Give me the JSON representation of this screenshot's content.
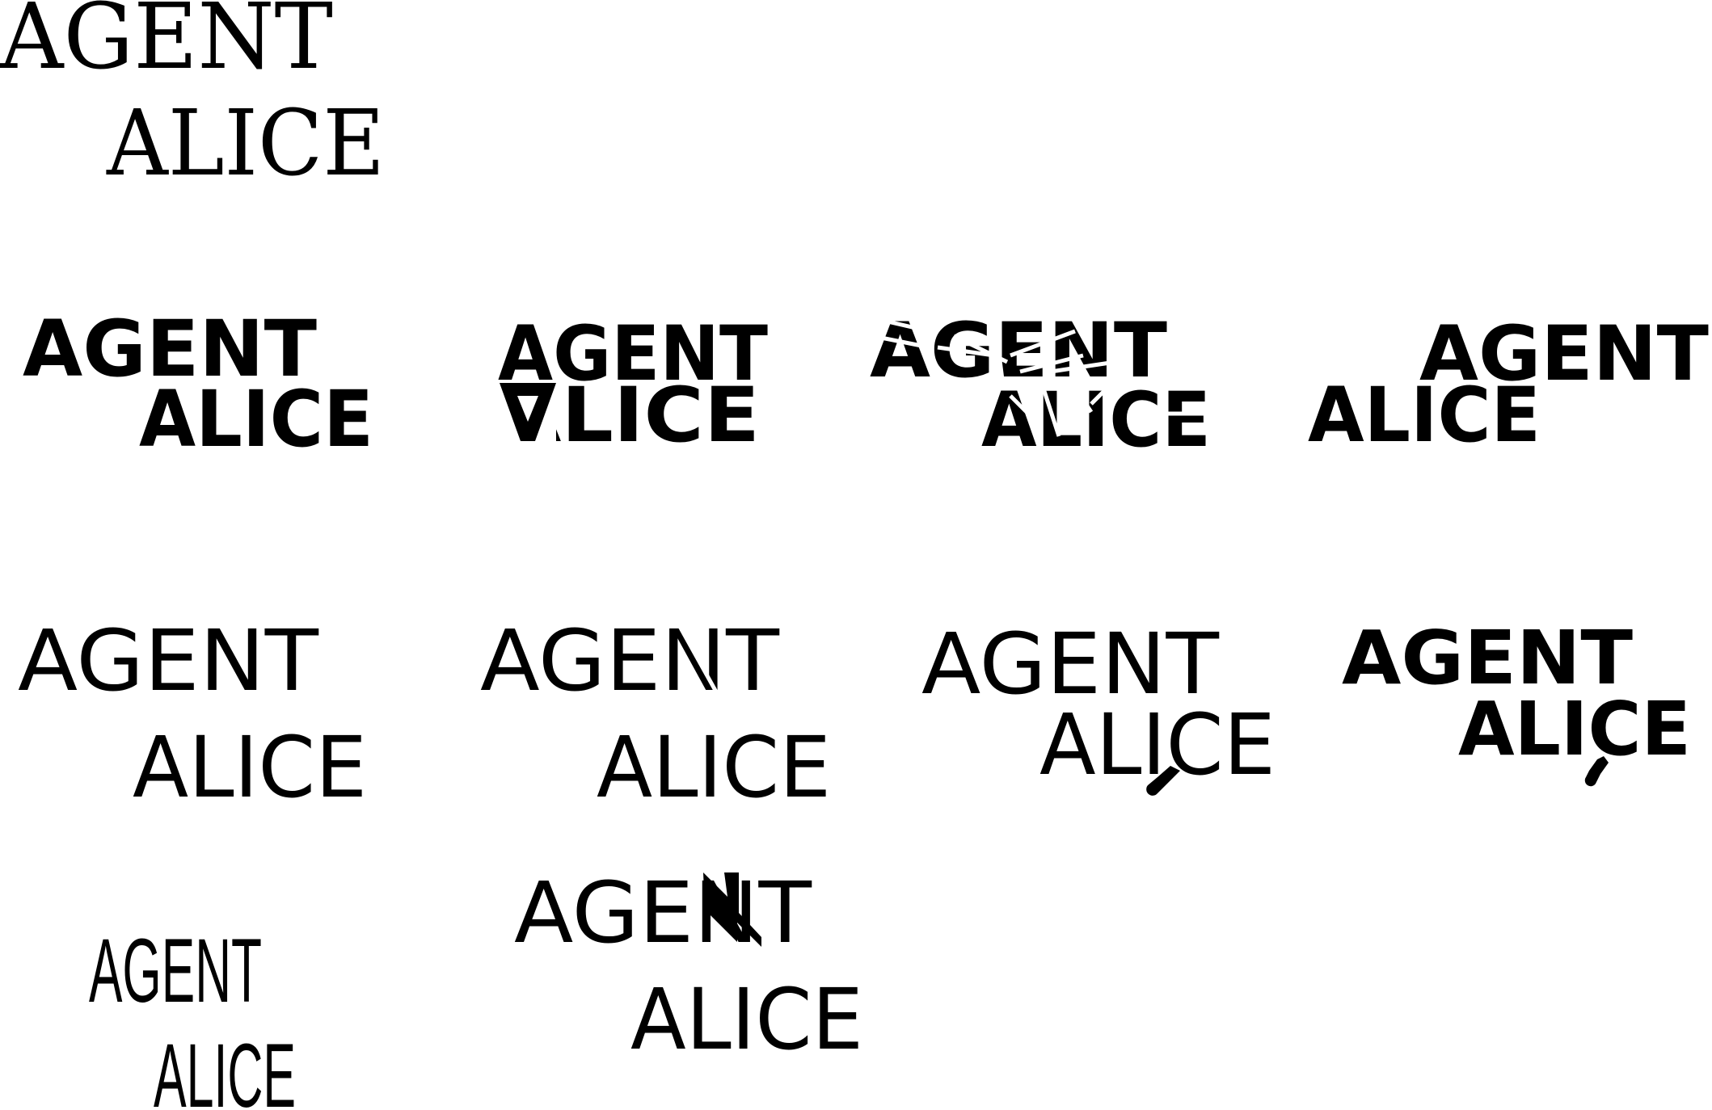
{
  "logos": [
    {
      "id": "v1",
      "top": "AGENT",
      "bottom": "ALICE"
    },
    {
      "id": "v2",
      "top": "AGENT",
      "bottom": "ALICE"
    },
    {
      "id": "v3",
      "top": "AGENT",
      "bottom": "ALICE"
    },
    {
      "id": "v4",
      "top": "AGENT",
      "bottom": "ALICE"
    },
    {
      "id": "v5",
      "top": "AGENT",
      "bottom": "ALICE"
    },
    {
      "id": "v6",
      "top": "AGENT",
      "bottom": "ALICE"
    },
    {
      "id": "v7",
      "top": "AGENT",
      "bottom": "ALICE"
    },
    {
      "id": "v8",
      "top": "AGENT",
      "bottom": "ALICE"
    },
    {
      "id": "v9",
      "top": "AGENT",
      "bottom": "ALICE"
    },
    {
      "id": "v10",
      "top": "AGENT",
      "bottom": "ALICE"
    },
    {
      "id": "v11",
      "top": "AGENT",
      "bottom": "ALICE"
    }
  ],
  "colors": {
    "ink": "#000000",
    "background": "#ffffff"
  },
  "icons": [
    "magnifying-glass-icon",
    "lightning-bolt-icon"
  ]
}
